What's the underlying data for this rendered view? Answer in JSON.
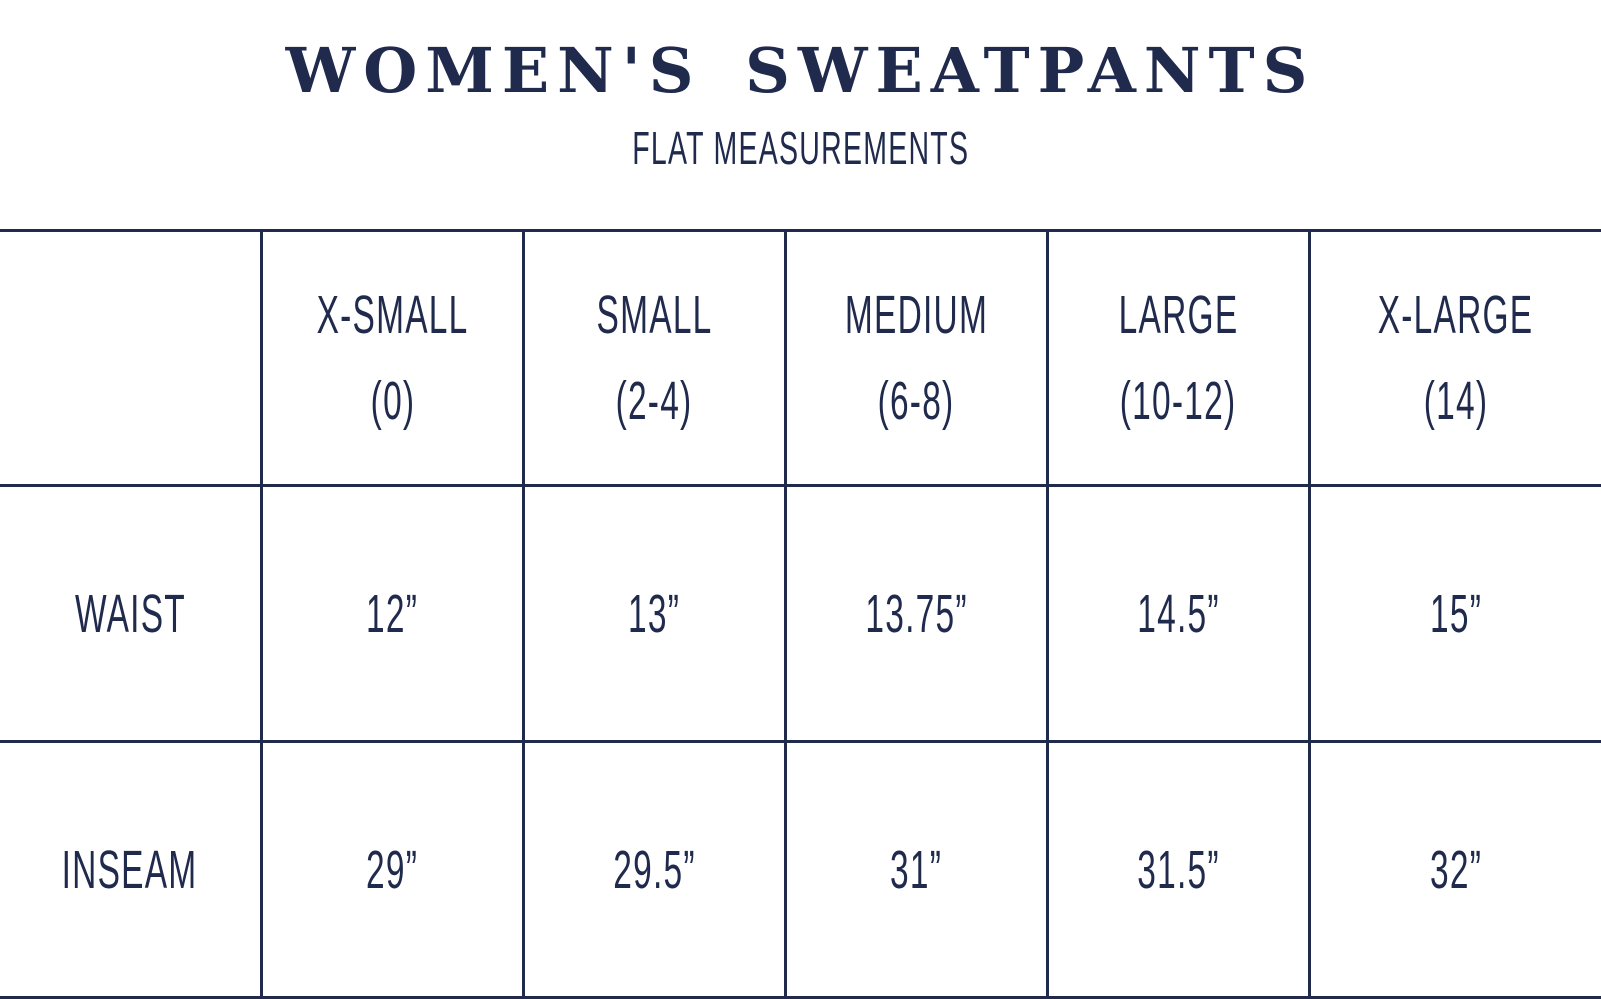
{
  "colors": {
    "navy": "#1f2a4c",
    "background": "#ffffff"
  },
  "header": {
    "title": "WOMEN'S SWEATPANTS",
    "subtitle": "FLAT MEASUREMENTS"
  },
  "chart_data": {
    "type": "table",
    "title": "WOMEN'S SWEATPANTS",
    "subtitle": "FLAT MEASUREMENTS",
    "corner_label": "",
    "columns": [
      {
        "label": "X-SMALL",
        "sublabel": "(0)"
      },
      {
        "label": "SMALL",
        "sublabel": "(2-4)"
      },
      {
        "label": "MEDIUM",
        "sublabel": "(6-8)"
      },
      {
        "label": "LARGE",
        "sublabel": "(10-12)"
      },
      {
        "label": "X-LARGE",
        "sublabel": "(14)"
      }
    ],
    "rows": [
      {
        "label": "WAIST",
        "values": [
          "12”",
          "13”",
          "13.75”",
          "14.5”",
          "15”"
        ]
      },
      {
        "label": "INSEAM",
        "values": [
          "29”",
          "29.5”",
          "31”",
          "31.5”",
          "32”"
        ]
      }
    ]
  }
}
